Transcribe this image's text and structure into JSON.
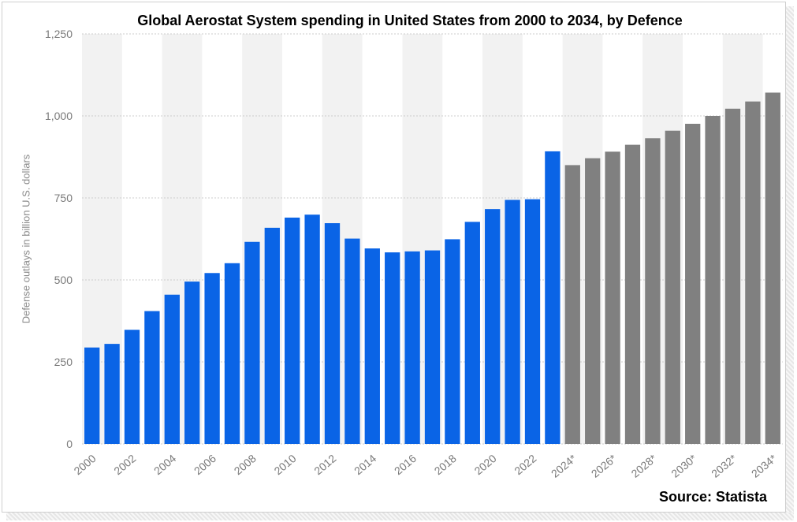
{
  "chart_data": {
    "type": "bar",
    "title": "Global Aerostat System spending in United States from 2000 to 2034, by Defence",
    "xlabel": "",
    "ylabel": "Defense outlays in billion U.S. dollars",
    "source": "Source: Statista",
    "ylim": [
      0,
      1250
    ],
    "yticks": [
      0,
      250,
      500,
      750,
      1000,
      1250
    ],
    "ytick_labels": [
      "0",
      "250",
      "500",
      "750",
      "1,000",
      "1,250"
    ],
    "grid": true,
    "legend": "none",
    "colors": {
      "actual": "#0a64e6",
      "forecast": "#808080",
      "band": "#f2f2f2",
      "grid": "#cccccc"
    },
    "categories": [
      "2000",
      "2001",
      "2002",
      "2003",
      "2004",
      "2005",
      "2006",
      "2007",
      "2008",
      "2009",
      "2010",
      "2011",
      "2012",
      "2013",
      "2014",
      "2015",
      "2016",
      "2017",
      "2018",
      "2019",
      "2020",
      "2021",
      "2022",
      "2023",
      "2024*",
      "2025*",
      "2026*",
      "2027*",
      "2028*",
      "2029*",
      "2030*",
      "2031*",
      "2032*",
      "2033*",
      "2034*"
    ],
    "x_tick_labels": [
      "2000",
      "2002",
      "2004",
      "2006",
      "2008",
      "2010",
      "2012",
      "2014",
      "2016",
      "2018",
      "2020",
      "2022",
      "2024*",
      "2026*",
      "2028*",
      "2030*",
      "2032*",
      "2034*"
    ],
    "values": [
      294,
      305,
      348,
      405,
      455,
      495,
      521,
      551,
      616,
      659,
      690,
      699,
      673,
      626,
      596,
      584,
      587,
      590,
      624,
      677,
      716,
      744,
      746,
      892,
      850,
      871,
      891,
      912,
      932,
      955,
      976,
      1000,
      1022,
      1044,
      1071
    ],
    "forecast": [
      false,
      false,
      false,
      false,
      false,
      false,
      false,
      false,
      false,
      false,
      false,
      false,
      false,
      false,
      false,
      false,
      false,
      false,
      false,
      false,
      false,
      false,
      false,
      false,
      true,
      true,
      true,
      true,
      true,
      true,
      true,
      true,
      true,
      true,
      true
    ]
  }
}
